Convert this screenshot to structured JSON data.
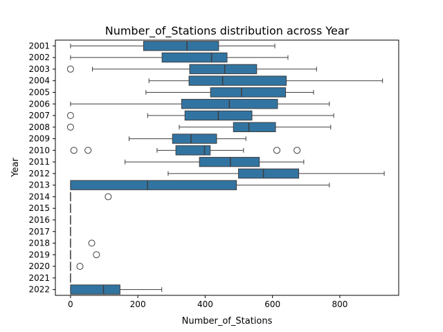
{
  "chart_data": {
    "type": "boxplot",
    "orientation": "horizontal",
    "title": "Number_of_Stations distribution across Year",
    "xlabel": "Number_of_Stations",
    "ylabel": "Year",
    "xlim": [
      -45,
      975
    ],
    "xticks": [
      0,
      200,
      400,
      600,
      800
    ],
    "grid": false,
    "box_color": "#3274a1",
    "line_color": "#3d3d3d",
    "categories": [
      "2001",
      "2002",
      "2003",
      "2004",
      "2005",
      "2006",
      "2007",
      "2008",
      "2009",
      "2010",
      "2011",
      "2012",
      "2013",
      "2014",
      "2015",
      "2016",
      "2017",
      "2018",
      "2019",
      "2020",
      "2021",
      "2022"
    ],
    "boxes": [
      {
        "year": "2001",
        "whisker_low": 0,
        "q1": 217,
        "median": 346,
        "q3": 440,
        "whisker_high": 607,
        "outliers": []
      },
      {
        "year": "2002",
        "whisker_low": 0,
        "q1": 272,
        "median": 419,
        "q3": 465,
        "whisker_high": 646,
        "outliers": []
      },
      {
        "year": "2003",
        "whisker_low": 65,
        "q1": 354,
        "median": 458,
        "q3": 553,
        "whisker_high": 731,
        "outliers": [
          0
        ]
      },
      {
        "year": "2004",
        "whisker_low": 233,
        "q1": 352,
        "median": 452,
        "q3": 641,
        "whisker_high": 927,
        "outliers": []
      },
      {
        "year": "2005",
        "whisker_low": 224,
        "q1": 416,
        "median": 508,
        "q3": 639,
        "whisker_high": 722,
        "outliers": []
      },
      {
        "year": "2006",
        "whisker_low": 0,
        "q1": 330,
        "median": 472,
        "q3": 615,
        "whisker_high": 769,
        "outliers": []
      },
      {
        "year": "2007",
        "whisker_low": 229,
        "q1": 340,
        "median": 439,
        "q3": 539,
        "whisker_high": 782,
        "outliers": [
          0
        ]
      },
      {
        "year": "2008",
        "whisker_low": 323,
        "q1": 484,
        "median": 530,
        "q3": 609,
        "whisker_high": 773,
        "outliers": [
          0
        ]
      },
      {
        "year": "2009",
        "whisker_low": 174,
        "q1": 303,
        "median": 358,
        "q3": 434,
        "whisker_high": 521,
        "outliers": []
      },
      {
        "year": "2010",
        "whisker_low": 257,
        "q1": 313,
        "median": 398,
        "q3": 415,
        "whisker_high": 514,
        "outliers": [
          10,
          52,
          613,
          673
        ]
      },
      {
        "year": "2011",
        "whisker_low": 162,
        "q1": 383,
        "median": 475,
        "q3": 561,
        "whisker_high": 693,
        "outliers": []
      },
      {
        "year": "2012",
        "whisker_low": 290,
        "q1": 499,
        "median": 573,
        "q3": 678,
        "whisker_high": 932,
        "outliers": []
      },
      {
        "year": "2013",
        "whisker_low": 0,
        "q1": 0,
        "median": 229,
        "q3": 493,
        "whisker_high": 769,
        "outliers": []
      },
      {
        "year": "2014",
        "whisker_low": 0,
        "q1": 0,
        "median": 0,
        "q3": 0,
        "whisker_high": 0,
        "outliers": [
          112
        ]
      },
      {
        "year": "2015",
        "whisker_low": 0,
        "q1": 0,
        "median": 0,
        "q3": 0,
        "whisker_high": 0,
        "outliers": []
      },
      {
        "year": "2016",
        "whisker_low": 0,
        "q1": 0,
        "median": 0,
        "q3": 0,
        "whisker_high": 0,
        "outliers": []
      },
      {
        "year": "2017",
        "whisker_low": 0,
        "q1": 0,
        "median": 0,
        "q3": 0,
        "whisker_high": 0,
        "outliers": []
      },
      {
        "year": "2018",
        "whisker_low": 0,
        "q1": 0,
        "median": 0,
        "q3": 0,
        "whisker_high": 0,
        "outliers": [
          63
        ]
      },
      {
        "year": "2019",
        "whisker_low": 0,
        "q1": 0,
        "median": 0,
        "q3": 0,
        "whisker_high": 0,
        "outliers": [
          77
        ]
      },
      {
        "year": "2020",
        "whisker_low": 0,
        "q1": 0,
        "median": 0,
        "q3": 0,
        "whisker_high": 0,
        "outliers": [
          28
        ]
      },
      {
        "year": "2021",
        "whisker_low": 0,
        "q1": 0,
        "median": 0,
        "q3": 0,
        "whisker_high": 0,
        "outliers": []
      },
      {
        "year": "2022",
        "whisker_low": 0,
        "q1": 0,
        "median": 98,
        "q3": 147,
        "whisker_high": 271,
        "outliers": []
      }
    ]
  }
}
